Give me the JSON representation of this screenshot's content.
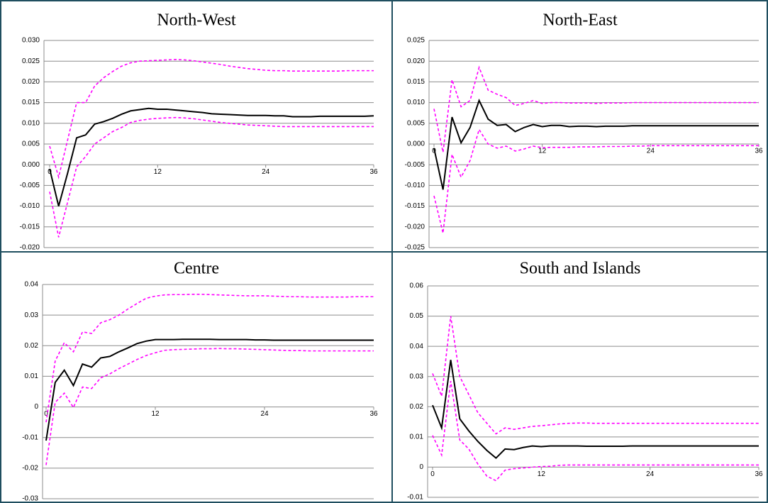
{
  "chart_data": [
    {
      "type": "line",
      "title": "North-West",
      "x": [
        0,
        1,
        2,
        3,
        4,
        5,
        6,
        7,
        8,
        9,
        10,
        11,
        12,
        13,
        14,
        15,
        16,
        17,
        18,
        19,
        20,
        21,
        22,
        23,
        24,
        25,
        26,
        27,
        28,
        29,
        30,
        31,
        32,
        33,
        34,
        35,
        36
      ],
      "xlim": [
        0,
        36
      ],
      "xticks": [
        0,
        12,
        24,
        36
      ],
      "ylim": [
        -0.02,
        0.03
      ],
      "yticks": [
        {
          "value": 0.03,
          "label": "0.030"
        },
        0.025,
        {
          "value": 0.02,
          "label": "0.020"
        },
        0.015,
        {
          "value": 0.01,
          "label": "0.010"
        },
        0.005,
        {
          "value": 0,
          "label": "0.000"
        },
        -0.005,
        {
          "value": -0.01,
          "label": "-0.010"
        },
        -0.015,
        {
          "value": -0.02,
          "label": "-0.020"
        }
      ],
      "grid": true,
      "series": [
        {
          "color": "#000000",
          "dash": false,
          "values": [
            -0.001,
            -0.01,
            -0.002,
            0.0065,
            0.0072,
            0.0098,
            0.0104,
            0.0112,
            0.0122,
            0.013,
            0.0133,
            0.0136,
            0.0134,
            0.0134,
            0.0132,
            0.013,
            0.0128,
            0.0126,
            0.0123,
            0.0122,
            0.0121,
            0.012,
            0.0119,
            0.0119,
            0.0119,
            0.0118,
            0.0118,
            0.0116,
            0.0116,
            0.0116,
            0.0117,
            0.0117,
            0.0117,
            0.0117,
            0.0117,
            0.0117,
            0.0118
          ]
        },
        {
          "color": "#ff00ff",
          "dash": true,
          "values": [
            0.0045,
            -0.003,
            0.006,
            0.015,
            0.015,
            0.019,
            0.021,
            0.0225,
            0.0238,
            0.0246,
            0.025,
            0.0251,
            0.0252,
            0.0253,
            0.0254,
            0.0253,
            0.0251,
            0.0248,
            0.0245,
            0.0242,
            0.0238,
            0.0235,
            0.0232,
            0.023,
            0.0228,
            0.0227,
            0.0227,
            0.0226,
            0.0226,
            0.0226,
            0.0226,
            0.0226,
            0.0226,
            0.0227,
            0.0227,
            0.0227,
            0.0227
          ]
        },
        {
          "color": "#ff00ff",
          "dash": true,
          "values": [
            -0.0065,
            -0.0175,
            -0.009,
            -0.0005,
            0.002,
            0.005,
            0.0065,
            0.008,
            0.009,
            0.0102,
            0.0107,
            0.011,
            0.0112,
            0.0113,
            0.0114,
            0.0113,
            0.0111,
            0.0108,
            0.0105,
            0.0102,
            0.01,
            0.0098,
            0.0096,
            0.0095,
            0.0094,
            0.0093,
            0.0092,
            0.0092,
            0.0092,
            0.0092,
            0.0092,
            0.0092,
            0.0092,
            0.0092,
            0.0092,
            0.0092,
            0.0092
          ]
        }
      ]
    },
    {
      "type": "line",
      "title": "North-East",
      "x": [
        0,
        1,
        2,
        3,
        4,
        5,
        6,
        7,
        8,
        9,
        10,
        11,
        12,
        13,
        14,
        15,
        16,
        17,
        18,
        19,
        20,
        21,
        22,
        23,
        24,
        25,
        26,
        27,
        28,
        29,
        30,
        31,
        32,
        33,
        34,
        35,
        36
      ],
      "xlim": [
        0,
        36
      ],
      "xticks": [
        0,
        12,
        24,
        36
      ],
      "ylim": [
        -0.025,
        0.025
      ],
      "yticks": [
        0.025,
        {
          "value": 0.02,
          "label": "0.020"
        },
        0.015,
        {
          "value": 0.01,
          "label": "0.010"
        },
        0.005,
        {
          "value": 0,
          "label": "0.000"
        },
        -0.005,
        {
          "value": -0.01,
          "label": "-0.010"
        },
        -0.015,
        {
          "value": -0.02,
          "label": "-0.020"
        },
        -0.025
      ],
      "grid": true,
      "series": [
        {
          "color": "#000000",
          "dash": false,
          "values": [
            -0.001,
            -0.011,
            0.0065,
            0.0003,
            0.004,
            0.0105,
            0.006,
            0.0045,
            0.0047,
            0.003,
            0.004,
            0.0047,
            0.0042,
            0.0045,
            0.0045,
            0.0042,
            0.0043,
            0.0043,
            0.0042,
            0.0043,
            0.0043,
            0.0043,
            0.0044,
            0.0044,
            0.0044,
            0.0044,
            0.0044,
            0.0044,
            0.0044,
            0.0044,
            0.0044,
            0.0044,
            0.0044,
            0.0044,
            0.0044,
            0.0044,
            0.0044
          ]
        },
        {
          "color": "#ff00ff",
          "dash": true,
          "values": [
            0.0085,
            -0.002,
            0.0155,
            0.009,
            0.0105,
            0.0185,
            0.013,
            0.012,
            0.0112,
            0.0093,
            0.0098,
            0.0105,
            0.0098,
            0.01,
            0.01,
            0.0099,
            0.0099,
            0.0099,
            0.0098,
            0.0099,
            0.0099,
            0.0099,
            0.01,
            0.01,
            0.01,
            0.01,
            0.01,
            0.01,
            0.01,
            0.01,
            0.01,
            0.01,
            0.01,
            0.01,
            0.01,
            0.01,
            0.01
          ]
        },
        {
          "color": "#ff00ff",
          "dash": true,
          "values": [
            -0.0125,
            -0.0215,
            -0.0025,
            -0.008,
            -0.004,
            0.0035,
            0.0,
            -0.001,
            -0.0005,
            -0.0017,
            -0.0012,
            -0.0005,
            -0.0009,
            -0.0008,
            -0.0008,
            -0.0008,
            -0.0007,
            -0.0007,
            -0.0007,
            -0.0006,
            -0.0006,
            -0.0006,
            -0.0005,
            -0.0005,
            -0.0004,
            -0.0004,
            -0.0004,
            -0.0004,
            -0.0004,
            -0.0004,
            -0.0004,
            -0.0004,
            -0.0004,
            -0.0004,
            -0.0004,
            -0.0004,
            -0.0004
          ]
        }
      ]
    },
    {
      "type": "line",
      "title": "Centre",
      "x": [
        0,
        1,
        2,
        3,
        4,
        5,
        6,
        7,
        8,
        9,
        10,
        11,
        12,
        13,
        14,
        15,
        16,
        17,
        18,
        19,
        20,
        21,
        22,
        23,
        24,
        25,
        26,
        27,
        28,
        29,
        30,
        31,
        32,
        33,
        34,
        35,
        36
      ],
      "xlim": [
        0,
        36
      ],
      "xticks": [
        0,
        12,
        24,
        36
      ],
      "ylim": [
        -0.03,
        0.04
      ],
      "yticks": [
        0.04,
        0.03,
        0.02,
        0.01,
        0,
        -0.01,
        -0.02,
        -0.03
      ],
      "grid": true,
      "series": [
        {
          "color": "#000000",
          "dash": false,
          "values": [
            -0.011,
            0.008,
            0.012,
            0.007,
            0.014,
            0.013,
            0.016,
            0.0165,
            0.018,
            0.0193,
            0.0207,
            0.0215,
            0.022,
            0.022,
            0.022,
            0.0221,
            0.0221,
            0.0221,
            0.0221,
            0.022,
            0.022,
            0.022,
            0.022,
            0.0219,
            0.0219,
            0.0218,
            0.0218,
            0.0218,
            0.0218,
            0.0218,
            0.0218,
            0.0218,
            0.0218,
            0.0218,
            0.0218,
            0.0218,
            0.0218
          ]
        },
        {
          "color": "#ff00ff",
          "dash": true,
          "values": [
            -0.005,
            0.015,
            0.021,
            0.018,
            0.0245,
            0.024,
            0.0275,
            0.0285,
            0.03,
            0.032,
            0.0338,
            0.0355,
            0.0362,
            0.0366,
            0.0367,
            0.0367,
            0.0368,
            0.0368,
            0.0367,
            0.0366,
            0.0365,
            0.0364,
            0.0363,
            0.0363,
            0.0363,
            0.0362,
            0.0361,
            0.036,
            0.036,
            0.0359,
            0.0359,
            0.0359,
            0.0359,
            0.0359,
            0.036,
            0.036,
            0.036
          ]
        },
        {
          "color": "#ff00ff",
          "dash": true,
          "values": [
            -0.019,
            0.0015,
            0.0045,
            -0.0002,
            0.0065,
            0.006,
            0.0095,
            0.0108,
            0.0125,
            0.014,
            0.0155,
            0.0168,
            0.0177,
            0.0185,
            0.0187,
            0.0188,
            0.0189,
            0.019,
            0.019,
            0.0191,
            0.019,
            0.019,
            0.0189,
            0.0188,
            0.0187,
            0.0186,
            0.0185,
            0.0184,
            0.0184,
            0.0183,
            0.0183,
            0.0183,
            0.0183,
            0.0183,
            0.0183,
            0.0183,
            0.0183
          ]
        }
      ]
    },
    {
      "type": "line",
      "title": "South and Islands",
      "x": [
        0,
        1,
        2,
        3,
        4,
        5,
        6,
        7,
        8,
        9,
        10,
        11,
        12,
        13,
        14,
        15,
        16,
        17,
        18,
        19,
        20,
        21,
        22,
        23,
        24,
        25,
        26,
        27,
        28,
        29,
        30,
        31,
        32,
        33,
        34,
        35,
        36
      ],
      "xlim": [
        0,
        36
      ],
      "xticks": [
        0,
        12,
        24,
        36
      ],
      "ylim": [
        -0.01,
        0.06
      ],
      "yticks": [
        0.06,
        0.05,
        0.04,
        0.03,
        0.02,
        0.01,
        0,
        -0.01
      ],
      "grid": true,
      "series": [
        {
          "color": "#000000",
          "dash": false,
          "values": [
            0.0205,
            0.013,
            0.0355,
            0.016,
            0.012,
            0.0085,
            0.0055,
            0.003,
            0.006,
            0.0058,
            0.0065,
            0.007,
            0.0068,
            0.007,
            0.007,
            0.007,
            0.007,
            0.0069,
            0.0069,
            0.0069,
            0.0069,
            0.0069,
            0.007,
            0.007,
            0.007,
            0.007,
            0.007,
            0.007,
            0.007,
            0.007,
            0.007,
            0.007,
            0.007,
            0.007,
            0.007,
            0.007,
            0.007
          ]
        },
        {
          "color": "#ff00ff",
          "dash": true,
          "values": [
            0.031,
            0.0235,
            0.05,
            0.03,
            0.024,
            0.018,
            0.0145,
            0.011,
            0.013,
            0.0125,
            0.013,
            0.0135,
            0.0137,
            0.014,
            0.0143,
            0.0145,
            0.0146,
            0.0146,
            0.0145,
            0.0145,
            0.0145,
            0.0145,
            0.0145,
            0.0145,
            0.0145,
            0.0145,
            0.0145,
            0.0145,
            0.0145,
            0.0145,
            0.0145,
            0.0145,
            0.0145,
            0.0145,
            0.0145,
            0.0145,
            0.0145
          ]
        },
        {
          "color": "#ff00ff",
          "dash": true,
          "values": [
            0.0105,
            0.004,
            0.0285,
            0.009,
            0.006,
            0.001,
            -0.003,
            -0.0045,
            -0.001,
            -0.0005,
            -0.0003,
            0.0,
            0.0002,
            0.0003,
            0.0006,
            0.0007,
            0.0007,
            0.0007,
            0.0007,
            0.0007,
            0.0007,
            0.0007,
            0.0007,
            0.0007,
            0.0007,
            0.0007,
            0.0007,
            0.0007,
            0.0007,
            0.0007,
            0.0007,
            0.0007,
            0.0007,
            0.0007,
            0.0007,
            0.0007,
            0.0007
          ]
        }
      ]
    }
  ]
}
